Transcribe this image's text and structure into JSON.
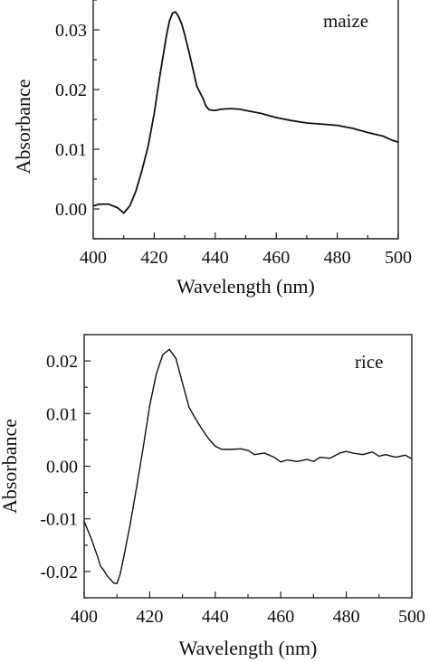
{
  "chart_data": [
    {
      "type": "line",
      "panel_label": "maize",
      "title": "",
      "xlabel": "Wavelength (nm)",
      "ylabel": "Absorbance",
      "xlim": [
        400,
        500
      ],
      "ylim": [
        -0.005,
        0.035
      ],
      "x_ticks": [
        400,
        420,
        440,
        460,
        480,
        500
      ],
      "x_tick_labels": [
        "400",
        "420",
        "440",
        "460",
        "480",
        "500"
      ],
      "y_ticks": [
        0.0,
        0.01,
        0.02,
        0.03
      ],
      "y_tick_labels": [
        "0.00",
        "0.01",
        "0.02",
        "0.03"
      ],
      "grid": false,
      "series": [
        {
          "x": [
            400,
            402,
            405,
            408,
            410,
            412,
            414,
            416,
            418,
            420,
            422,
            424,
            425,
            426,
            427,
            428,
            429,
            430,
            432,
            434,
            436,
            437,
            438,
            440,
            442,
            445,
            448,
            450,
            455,
            460,
            465,
            470,
            475,
            480,
            485,
            490,
            495,
            498,
            500
          ],
          "y": [
            0.0005,
            0.0008,
            0.0008,
            0.0002,
            -0.0007,
            0.0005,
            0.003,
            0.0065,
            0.0105,
            0.016,
            0.0228,
            0.029,
            0.0315,
            0.0328,
            0.033,
            0.0322,
            0.031,
            0.0292,
            0.025,
            0.0205,
            0.0185,
            0.0172,
            0.0166,
            0.0165,
            0.0167,
            0.0168,
            0.0167,
            0.0165,
            0.016,
            0.0153,
            0.0148,
            0.0144,
            0.0142,
            0.014,
            0.0135,
            0.0128,
            0.0122,
            0.0115,
            0.0112
          ]
        }
      ]
    },
    {
      "type": "line",
      "panel_label": "rice",
      "title": "",
      "xlabel": "Wavelength (nm)",
      "ylabel": "Absorbance",
      "xlim": [
        400,
        500
      ],
      "ylim": [
        -0.025,
        0.025
      ],
      "x_ticks": [
        400,
        420,
        440,
        460,
        480,
        500
      ],
      "x_tick_labels": [
        "400",
        "420",
        "440",
        "460",
        "480",
        "500"
      ],
      "y_ticks": [
        -0.02,
        -0.01,
        0.0,
        0.01,
        0.02
      ],
      "y_tick_labels": [
        "-0.02",
        "-0.01",
        "0.00",
        "0.01",
        "0.02"
      ],
      "grid": false,
      "series": [
        {
          "x": [
            400,
            402,
            404,
            405,
            406,
            407,
            408,
            409,
            410,
            411,
            412,
            414,
            416,
            418,
            420,
            422,
            424,
            426,
            428,
            430,
            432,
            434,
            436,
            438,
            440,
            442,
            445,
            448,
            450,
            452,
            455,
            458,
            460,
            462,
            465,
            468,
            470,
            472,
            475,
            478,
            480,
            482,
            485,
            488,
            490,
            492,
            495,
            498,
            500
          ],
          "y": [
            -0.0105,
            -0.0135,
            -0.017,
            -0.019,
            -0.0198,
            -0.0208,
            -0.0215,
            -0.0222,
            -0.0223,
            -0.0205,
            -0.0175,
            -0.0112,
            -0.004,
            0.0035,
            0.0115,
            0.0175,
            0.0212,
            0.0222,
            0.0205,
            0.0158,
            0.0112,
            0.009,
            0.007,
            0.0052,
            0.0038,
            0.0032,
            0.0032,
            0.0033,
            0.003,
            0.0022,
            0.0025,
            0.0017,
            0.0008,
            0.0012,
            0.0009,
            0.0013,
            0.0009,
            0.0017,
            0.0015,
            0.0025,
            0.0028,
            0.0025,
            0.0022,
            0.0027,
            0.0019,
            0.0022,
            0.0017,
            0.0021,
            0.0014
          ]
        }
      ]
    }
  ]
}
